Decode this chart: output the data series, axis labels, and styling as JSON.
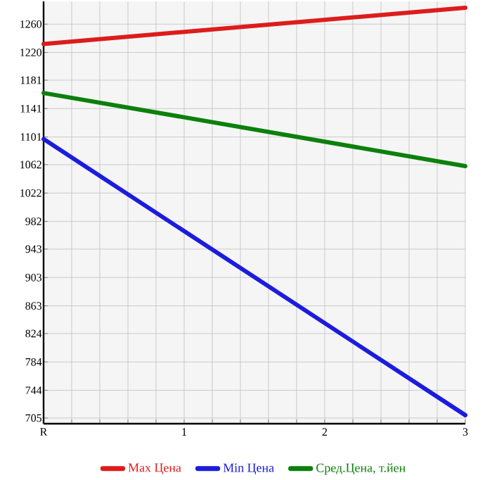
{
  "chart_data": {
    "type": "line",
    "categories": [
      "R",
      "1",
      "2",
      "3"
    ],
    "series": [
      {
        "name": "Max Цена",
        "color": "#dd1c1c",
        "values": [
          1232,
          null,
          null,
          1283
        ]
      },
      {
        "name": "Min Цена",
        "color": "#1c1cdd",
        "values": [
          1098,
          null,
          null,
          709
        ]
      },
      {
        "name": "Сред.Цена, т.йен",
        "color": "#0c800c",
        "values": [
          1163,
          null,
          null,
          1060
        ]
      }
    ],
    "ylim": [
      697,
      1292
    ],
    "yticks": [
      705,
      744,
      784,
      824,
      863,
      903,
      943,
      982,
      1022,
      1062,
      1101,
      1141,
      1181,
      1220,
      1260
    ],
    "grid": true,
    "legend": "bottom",
    "marker": "none",
    "line_style": "solid"
  }
}
